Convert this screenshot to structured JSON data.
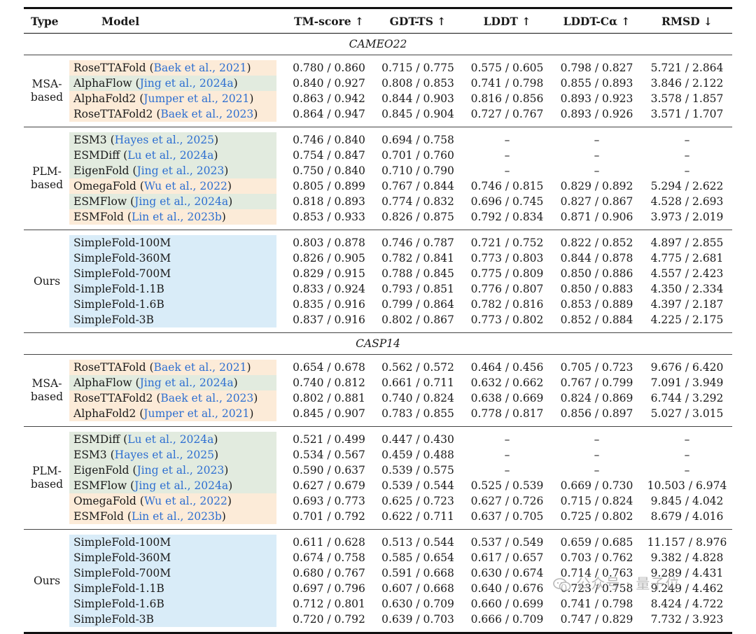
{
  "headers": {
    "type": "Type",
    "model": "Model",
    "tm": "TM-score ↑",
    "gdt": "GDT-TS ↑",
    "lddt": "LDDT ↑",
    "lddt_ca": "LDDT-Cα ↑",
    "rmsd": "RMSD ↓"
  },
  "sections": [
    {
      "title": "CAMEO22",
      "groups": [
        {
          "type_line1": "MSA-",
          "type_line2": "based",
          "rows": [
            {
              "model": "RoseTTAFold",
              "cite": "Baek et al., 2021",
              "color": "orange",
              "tm": "0.780 / 0.860",
              "gdt": "0.715 / 0.775",
              "lddt": "0.575 / 0.605",
              "lddt_ca": "0.798 / 0.827",
              "rmsd": "5.721 / 2.864"
            },
            {
              "model": "AlphaFlow",
              "cite": "Jing et al., 2024a",
              "color": "green",
              "tm": "0.840 / 0.927",
              "gdt": "0.808 / 0.853",
              "lddt": "0.741 / 0.798",
              "lddt_ca": "0.855 / 0.893",
              "rmsd": "3.846 / 2.122"
            },
            {
              "model": "AlphaFold2",
              "cite": "Jumper et al., 2021",
              "color": "orange",
              "tm": "0.863 / 0.942",
              "gdt": "0.844 / 0.903",
              "lddt": "0.816 / 0.856",
              "lddt_ca": "0.893 / 0.923",
              "rmsd": "3.578 / 1.857"
            },
            {
              "model": "RoseTTAFold2",
              "cite": "Baek et al., 2023",
              "color": "orange",
              "tm": "0.864 / 0.947",
              "gdt": "0.845 / 0.904",
              "lddt": "0.727 / 0.767",
              "lddt_ca": "0.893 / 0.926",
              "rmsd": "3.571 / 1.707"
            }
          ]
        },
        {
          "type_line1": "PLM-",
          "type_line2": "based",
          "rows": [
            {
              "model": "ESM3",
              "cite": "Hayes et al., 2025",
              "color": "green",
              "tm": "0.746 / 0.840",
              "gdt": "0.694 / 0.758",
              "lddt": "–",
              "lddt_ca": "–",
              "rmsd": "–"
            },
            {
              "model": "ESMDiff",
              "cite": "Lu et al., 2024a",
              "color": "green",
              "tm": "0.754 / 0.847",
              "gdt": "0.701 / 0.760",
              "lddt": "–",
              "lddt_ca": "–",
              "rmsd": "–"
            },
            {
              "model": "EigenFold",
              "cite": "Jing et al., 2023",
              "color": "green",
              "tm": "0.750 / 0.840",
              "gdt": "0.710 / 0.790",
              "lddt": "–",
              "lddt_ca": "–",
              "rmsd": "–"
            },
            {
              "model": "OmegaFold",
              "cite": "Wu et al., 2022",
              "color": "orange",
              "tm": "0.805 / 0.899",
              "gdt": "0.767 / 0.844",
              "lddt": "0.746 / 0.815",
              "lddt_ca": "0.829 / 0.892",
              "rmsd": "5.294 / 2.622"
            },
            {
              "model": "ESMFlow",
              "cite": "Jing et al., 2024a",
              "color": "green",
              "tm": "0.818 / 0.893",
              "gdt": "0.774 / 0.832",
              "lddt": "0.696 / 0.745",
              "lddt_ca": "0.827 / 0.867",
              "rmsd": "4.528 / 2.693"
            },
            {
              "model": "ESMFold",
              "cite": "Lin et al., 2023b",
              "color": "orange",
              "tm": "0.853 / 0.933",
              "gdt": "0.826 / 0.875",
              "lddt": "0.792 / 0.834",
              "lddt_ca": "0.871 / 0.906",
              "rmsd": "3.973 / 2.019"
            }
          ]
        },
        {
          "type_line1": "Ours",
          "type_line2": "",
          "rows": [
            {
              "model": "SimpleFold-100M",
              "cite": "",
              "color": "blue",
              "tm": "0.803 / 0.878",
              "gdt": "0.746 / 0.787",
              "lddt": "0.721 / 0.752",
              "lddt_ca": "0.822 / 0.852",
              "rmsd": "4.897 / 2.855"
            },
            {
              "model": "SimpleFold-360M",
              "cite": "",
              "color": "blue",
              "tm": "0.826 / 0.905",
              "gdt": "0.782 / 0.841",
              "lddt": "0.773 / 0.803",
              "lddt_ca": "0.844 / 0.878",
              "rmsd": "4.775 / 2.681"
            },
            {
              "model": "SimpleFold-700M",
              "cite": "",
              "color": "blue",
              "tm": "0.829 / 0.915",
              "gdt": "0.788 / 0.845",
              "lddt": "0.775 / 0.809",
              "lddt_ca": "0.850 / 0.886",
              "rmsd": "4.557 / 2.423"
            },
            {
              "model": "SimpleFold-1.1B",
              "cite": "",
              "color": "blue",
              "tm": "0.833 / 0.924",
              "gdt": "0.793 / 0.851",
              "lddt": "0.776 / 0.807",
              "lddt_ca": "0.850 / 0.883",
              "rmsd": "4.350 / 2.334"
            },
            {
              "model": "SimpleFold-1.6B",
              "cite": "",
              "color": "blue",
              "tm": "0.835 / 0.916",
              "gdt": "0.799 / 0.864",
              "lddt": "0.782 / 0.816",
              "lddt_ca": "0.853 / 0.889",
              "rmsd": "4.397 / 2.187"
            },
            {
              "model": "SimpleFold-3B",
              "cite": "",
              "color": "blue",
              "tm": "0.837 / 0.916",
              "gdt": "0.802 / 0.867",
              "lddt": "0.773 / 0.802",
              "lddt_ca": "0.852 / 0.884",
              "rmsd": "4.225 / 2.175"
            }
          ]
        }
      ]
    },
    {
      "title": "CASP14",
      "groups": [
        {
          "type_line1": "MSA-",
          "type_line2": "based",
          "rows": [
            {
              "model": "RoseTTAFold",
              "cite": "Baek et al., 2021",
              "color": "orange",
              "tm": "0.654 / 0.678",
              "gdt": "0.562 / 0.572",
              "lddt": "0.464 / 0.456",
              "lddt_ca": "0.705 / 0.723",
              "rmsd": "9.676 / 6.420"
            },
            {
              "model": "AlphaFlow",
              "cite": "Jing et al., 2024a",
              "color": "green",
              "tm": "0.740 / 0.812",
              "gdt": "0.661 / 0.711",
              "lddt": "0.632 / 0.662",
              "lddt_ca": "0.767 / 0.799",
              "rmsd": "7.091 / 3.949"
            },
            {
              "model": "RoseTTAFold2",
              "cite": "Baek et al., 2023",
              "color": "orange",
              "tm": "0.802 / 0.881",
              "gdt": "0.740 / 0.824",
              "lddt": "0.638 / 0.669",
              "lddt_ca": "0.824 / 0.869",
              "rmsd": "6.744 / 3.292"
            },
            {
              "model": "AlphaFold2",
              "cite": "Jumper et al., 2021",
              "color": "orange",
              "tm": "0.845 / 0.907",
              "gdt": "0.783 / 0.855",
              "lddt": "0.778 / 0.817",
              "lddt_ca": "0.856 / 0.897",
              "rmsd": "5.027 / 3.015"
            }
          ]
        },
        {
          "type_line1": "PLM-",
          "type_line2": "based",
          "rows": [
            {
              "model": "ESMDiff",
              "cite": "Lu et al., 2024a",
              "color": "green",
              "tm": "0.521 / 0.499",
              "gdt": "0.447 / 0.430",
              "lddt": "–",
              "lddt_ca": "–",
              "rmsd": "–"
            },
            {
              "model": "ESM3",
              "cite": "Hayes et al., 2025",
              "color": "green",
              "tm": "0.534 / 0.567",
              "gdt": "0.459 / 0.488",
              "lddt": "–",
              "lddt_ca": "–",
              "rmsd": "–"
            },
            {
              "model": "EigenFold",
              "cite": "Jing et al., 2023",
              "color": "green",
              "tm": "0.590 / 0.637",
              "gdt": "0.539 / 0.575",
              "lddt": "–",
              "lddt_ca": "–",
              "rmsd": "–"
            },
            {
              "model": "ESMFlow",
              "cite": "Jing et al., 2024a",
              "color": "green",
              "tm": "0.627 / 0.679",
              "gdt": "0.539 / 0.544",
              "lddt": "0.525 / 0.539",
              "lddt_ca": "0.669 / 0.730",
              "rmsd": "10.503 / 6.974"
            },
            {
              "model": "OmegaFold",
              "cite": "Wu et al., 2022",
              "color": "orange",
              "tm": "0.693 / 0.773",
              "gdt": "0.625 / 0.723",
              "lddt": "0.627 / 0.726",
              "lddt_ca": "0.715 / 0.824",
              "rmsd": "9.845 / 4.042"
            },
            {
              "model": "ESMFold",
              "cite": "Lin et al., 2023b",
              "color": "orange",
              "tm": "0.701 / 0.792",
              "gdt": "0.622 / 0.711",
              "lddt": "0.637 / 0.705",
              "lddt_ca": "0.725 / 0.802",
              "rmsd": "8.679 / 4.016"
            }
          ]
        },
        {
          "type_line1": "Ours",
          "type_line2": "",
          "rows": [
            {
              "model": "SimpleFold-100M",
              "cite": "",
              "color": "blue",
              "tm": "0.611 / 0.628",
              "gdt": "0.513 / 0.544",
              "lddt": "0.537 / 0.549",
              "lddt_ca": "0.659 / 0.685",
              "rmsd": "11.157 / 8.976"
            },
            {
              "model": "SimpleFold-360M",
              "cite": "",
              "color": "blue",
              "tm": "0.674 / 0.758",
              "gdt": "0.585 / 0.654",
              "lddt": "0.617 / 0.657",
              "lddt_ca": "0.703 / 0.762",
              "rmsd": "9.382 / 4.828"
            },
            {
              "model": "SimpleFold-700M",
              "cite": "",
              "color": "blue",
              "tm": "0.680 / 0.767",
              "gdt": "0.591 / 0.668",
              "lddt": "0.630 / 0.674",
              "lddt_ca": "0.714 / 0.763",
              "rmsd": "9.289 / 4.431"
            },
            {
              "model": "SimpleFold-1.1B",
              "cite": "",
              "color": "blue",
              "tm": "0.697 / 0.796",
              "gdt": "0.607 / 0.668",
              "lddt": "0.640 / 0.676",
              "lddt_ca": "0.723 / 0.758",
              "rmsd": "9.249 / 4.462"
            },
            {
              "model": "SimpleFold-1.6B",
              "cite": "",
              "color": "blue",
              "tm": "0.712 / 0.801",
              "gdt": "0.630 / 0.709",
              "lddt": "0.660 / 0.699",
              "lddt_ca": "0.741 / 0.798",
              "rmsd": "8.424 / 4.722"
            },
            {
              "model": "SimpleFold-3B",
              "cite": "",
              "color": "blue",
              "tm": "0.720 / 0.792",
              "gdt": "0.639 / 0.703",
              "lddt": "0.666 / 0.709",
              "lddt_ca": "0.747 / 0.829",
              "rmsd": "7.732 / 3.923"
            }
          ]
        }
      ]
    }
  ],
  "colors": {
    "orange": "#fcebd8",
    "green": "#e2ebdf",
    "blue": "#d9ecf8",
    "cite": "#2e6fd1"
  },
  "watermark": {
    "text": "公众号 · 量子位",
    "icon": "wechat-icon"
  }
}
